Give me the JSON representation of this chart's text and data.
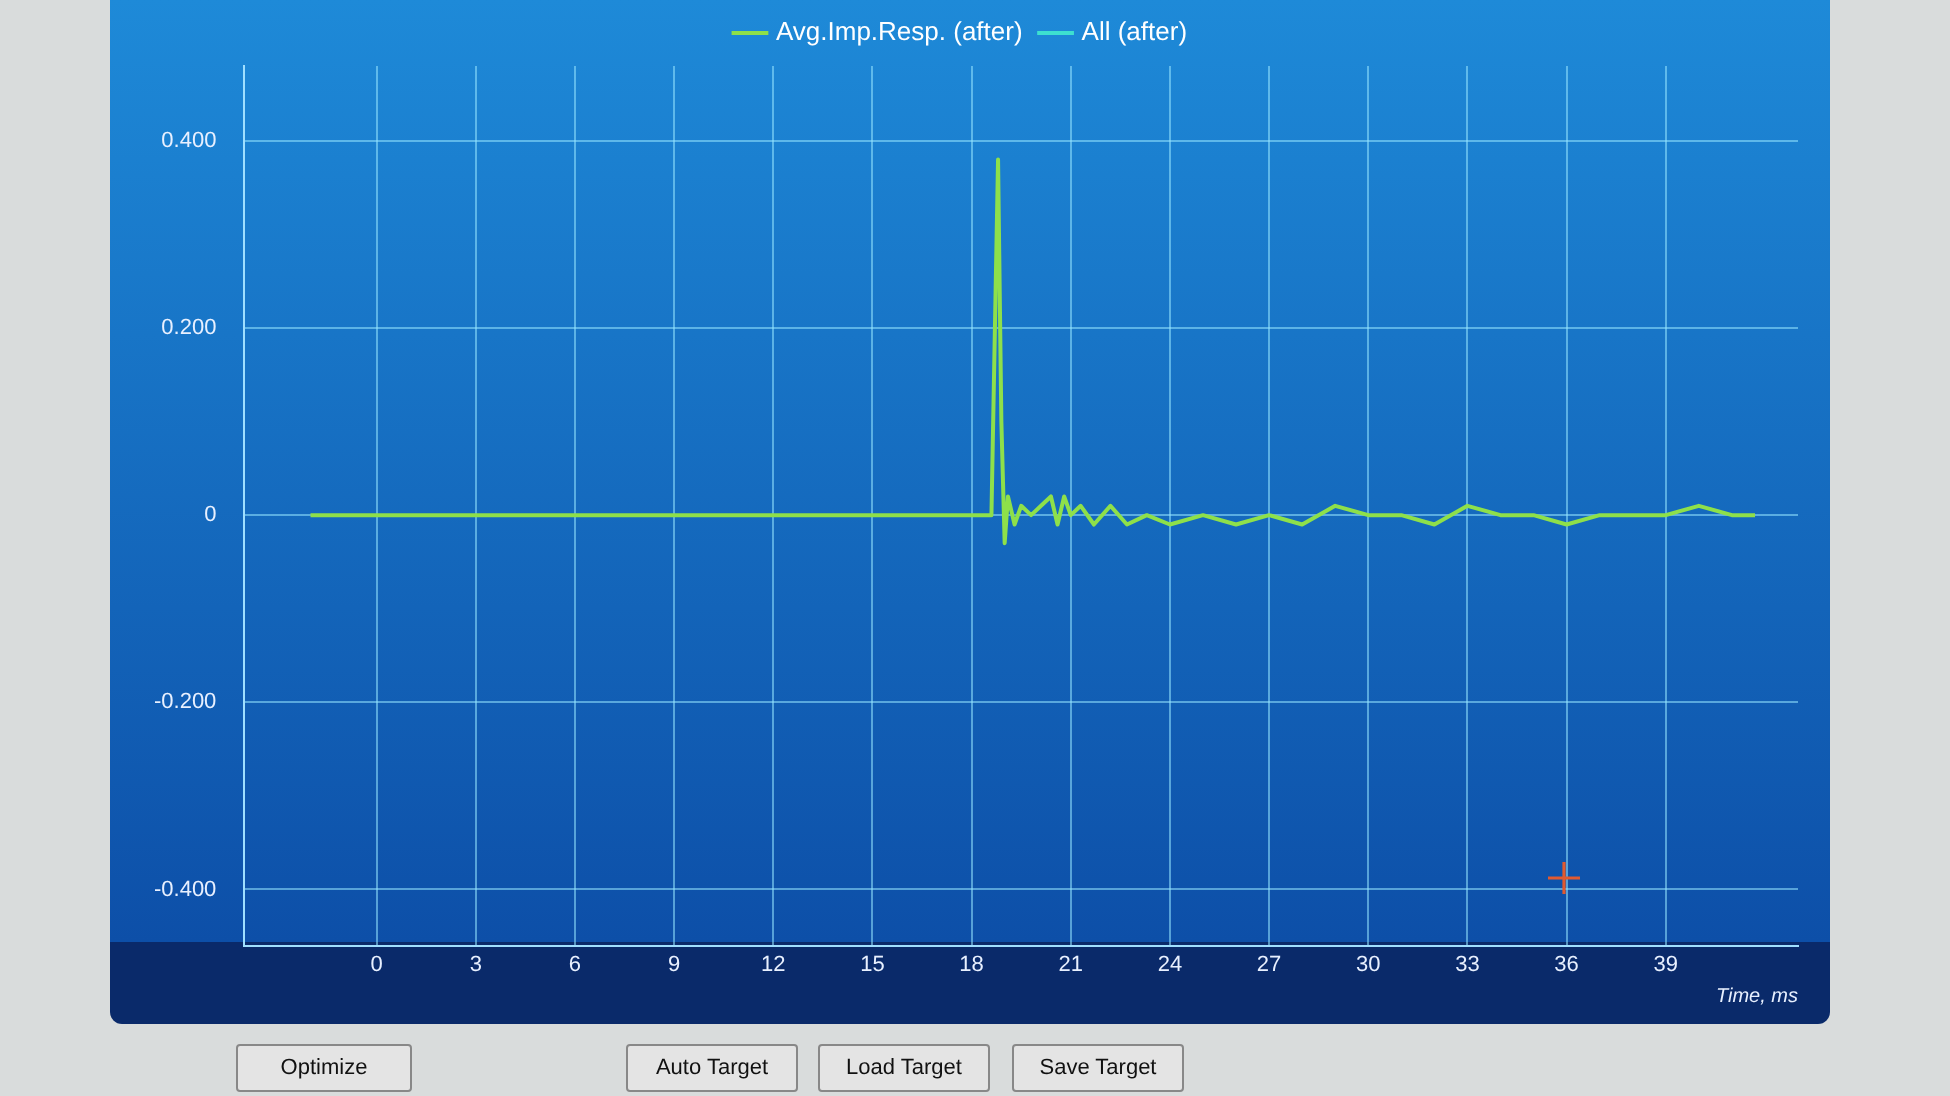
{
  "chart_data": {
    "type": "line",
    "xlabel": "Time, ms",
    "xlim": [
      -4,
      43
    ],
    "xticks": [
      0,
      3,
      6,
      9,
      12,
      15,
      18,
      21,
      24,
      27,
      30,
      33,
      36,
      39
    ],
    "ylim": [
      -0.46,
      0.48
    ],
    "yticks": [
      {
        "value": 0.4,
        "label": "0.400"
      },
      {
        "value": 0.2,
        "label": "0.200"
      },
      0,
      {
        "value": -0.2,
        "label": "-0.200"
      },
      {
        "value": -0.4,
        "label": "-0.400"
      }
    ],
    "series": [
      {
        "name": "Avg.Imp.Resp. (after)",
        "color": "#8ee04a",
        "x": [
          -2,
          18.6,
          18.8,
          18.9,
          19.0,
          19.1,
          19.3,
          19.5,
          19.8,
          20.1,
          20.4,
          20.6,
          20.8,
          21.0,
          21.3,
          21.7,
          22.2,
          22.7,
          23.3,
          24,
          25,
          26,
          27,
          28,
          29,
          30,
          31,
          32,
          33,
          34,
          35,
          36,
          37,
          38,
          39,
          40,
          41,
          41.7
        ],
        "values": [
          0,
          0,
          0.38,
          0.1,
          -0.03,
          0.02,
          -0.01,
          0.01,
          0,
          0.01,
          0.02,
          -0.01,
          0.02,
          0,
          0.01,
          -0.01,
          0.01,
          -0.01,
          0,
          -0.01,
          0,
          -0.01,
          0,
          -0.01,
          0.01,
          0,
          0,
          -0.01,
          0.01,
          0,
          0,
          -0.01,
          0,
          0,
          0,
          0.01,
          0,
          0
        ]
      },
      {
        "name": "All (after)",
        "color": "#3de0d0"
      }
    ],
    "grid": true,
    "legend": "top",
    "marker": "none",
    "line_style": "solid",
    "annotations": [
      "Optimize",
      "Auto Target",
      "Load Target",
      "Save Target"
    ]
  }
}
